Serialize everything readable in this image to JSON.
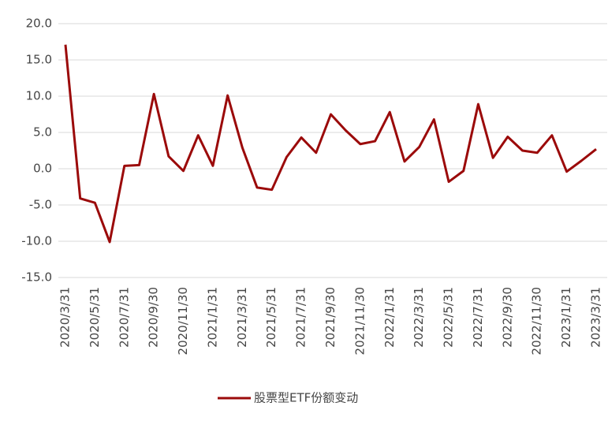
{
  "chart_data": {
    "type": "line",
    "categories": [
      "2020/3/31",
      null,
      "2020/5/31",
      null,
      "2020/7/31",
      null,
      "2020/9/30",
      null,
      "2020/11/30",
      null,
      "2021/1/31",
      null,
      "2021/3/31",
      null,
      "2021/5/31",
      null,
      "2021/7/31",
      null,
      "2021/9/30",
      null,
      "2021/11/30",
      null,
      "2022/1/31",
      null,
      "2022/3/31",
      null,
      "2022/5/31",
      null,
      "2022/7/31",
      null,
      "2022/9/30",
      null,
      "2022/11/30",
      null,
      "2023/1/31",
      null,
      "2023/3/31"
    ],
    "series": [
      {
        "name": "股票型ETF份额变动",
        "color": "#9b0a0a",
        "values": [
          17.1,
          -4.1,
          -4.7,
          -10.1,
          0.4,
          0.5,
          10.3,
          1.7,
          -0.3,
          4.6,
          0.4,
          10.1,
          2.9,
          -2.6,
          -2.9,
          1.6,
          4.3,
          2.2,
          7.5,
          5.3,
          3.4,
          3.8,
          7.8,
          1.0,
          3.0,
          6.8,
          -1.8,
          -0.3,
          8.9,
          1.5,
          4.4,
          2.5,
          2.2,
          4.6,
          -0.4,
          1.1,
          2.7
        ]
      }
    ],
    "ylim": [
      -15,
      20
    ],
    "yticks": [
      {
        "value": -15,
        "label": "-15.0"
      },
      {
        "value": -10,
        "label": "-10.0"
      },
      {
        "value": -5,
        "label": "-5.0"
      },
      {
        "value": 0,
        "label": "0.0"
      },
      {
        "value": 5,
        "label": "5.0"
      },
      {
        "value": 10,
        "label": "10.0"
      },
      {
        "value": 15,
        "label": "15.0"
      },
      {
        "value": 20,
        "label": "20.0"
      }
    ],
    "grid": true,
    "legend": "bottom"
  }
}
